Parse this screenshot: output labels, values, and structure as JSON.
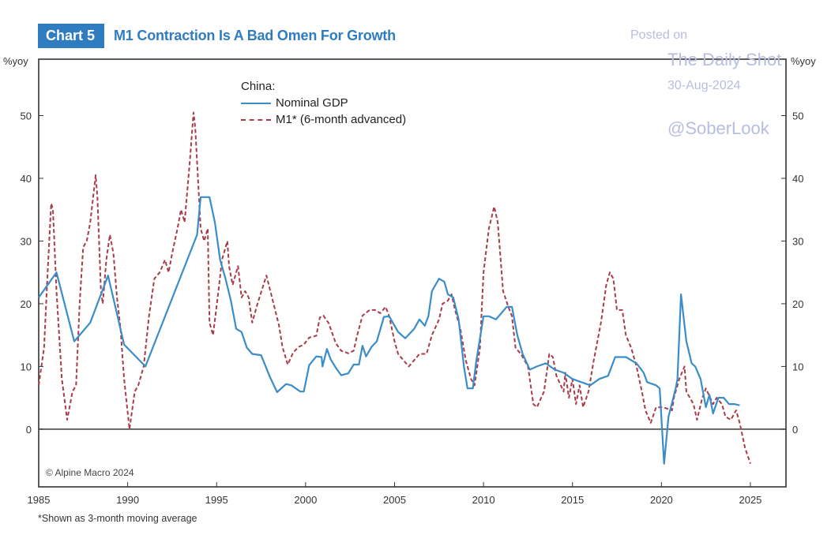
{
  "header": {
    "badge": "Chart 5",
    "title": "M1 Contraction Is A Bad Omen For Growth"
  },
  "watermark": {
    "line1": "Posted on",
    "line2": "The Daily Shot",
    "line3": "30-Aug-2024",
    "line4": "@SoberLook"
  },
  "colors": {
    "brand_blue": "#2f7cc1",
    "gdp_line": "#3a8dc8",
    "m1_line": "#a83c4a",
    "watermark": "#b7bde0"
  },
  "copyright": "© Alpine Macro 2024",
  "footnote": "*Shown as 3-month moving average",
  "chart_data": {
    "type": "line",
    "title": "M1 Contraction Is A Bad Omen For Growth",
    "xlabel": "",
    "ylabel": "%yoy",
    "ylabel_right": "%yoy",
    "xlim": [
      1985,
      2027
    ],
    "ylim": [
      -9.2,
      59
    ],
    "xticks": [
      1985,
      1990,
      1995,
      2000,
      2005,
      2010,
      2015,
      2020,
      2025
    ],
    "yticks": [
      0,
      10,
      20,
      30,
      40,
      50
    ],
    "grid": false,
    "zero_line": true,
    "legend": {
      "title": "China:",
      "position": "top-center",
      "entries": [
        "Nominal GDP",
        "M1* (6-month advanced)"
      ]
    },
    "series": [
      {
        "name": "Nominal GDP",
        "style": "solid",
        "x": [
          1985.0,
          1986.0,
          1987.0,
          1987.9,
          1988.9,
          1989.8,
          1991.0,
          1993.9,
          1994.1,
          1994.6,
          1994.9,
          1995.2,
          1995.5,
          1995.8,
          1996.1,
          1996.4,
          1996.7,
          1997.0,
          1997.5,
          1998.0,
          1998.4,
          1998.9,
          1999.2,
          1999.7,
          1999.9,
          2000.2,
          2000.6,
          2000.9,
          2000.95,
          2001.2,
          2001.4,
          2001.7,
          2002.0,
          2002.4,
          2002.7,
          2003.0,
          2003.2,
          2003.4,
          2003.7,
          2004.0,
          2004.4,
          2004.7,
          2005.0,
          2005.2,
          2005.6,
          2006.1,
          2006.4,
          2006.7,
          2006.9,
          2007.1,
          2007.5,
          2007.8,
          2008.0,
          2008.3,
          2008.6,
          2008.9,
          2009.1,
          2009.4,
          2009.6,
          2010.0,
          2010.3,
          2010.7,
          2011.0,
          2011.3,
          2011.6,
          2011.9,
          2012.2,
          2012.6,
          2013.0,
          2013.5,
          2014.0,
          2014.5,
          2015.0,
          2015.5,
          2016.0,
          2016.5,
          2017.0,
          2017.4,
          2018.0,
          2018.6,
          2019.0,
          2019.2,
          2019.7,
          2019.9,
          2020.15,
          2020.4,
          2020.8,
          2020.9,
          2021.1,
          2021.4,
          2021.7,
          2021.9,
          2022.2,
          2022.5,
          2022.7,
          2022.9,
          2023.2,
          2023.5,
          2023.8,
          2024.1,
          2024.4
        ],
        "values": [
          21,
          25,
          14,
          17,
          24.5,
          13.5,
          10,
          31,
          37,
          37,
          33,
          27,
          24,
          20.5,
          16,
          15.5,
          13,
          12,
          11.8,
          8.3,
          5.9,
          7.2,
          7,
          6,
          6,
          10.2,
          11.6,
          11.5,
          10,
          12.8,
          11.2,
          9.8,
          8.6,
          8.9,
          10.3,
          10.3,
          13.3,
          11.6,
          13.1,
          14,
          17.9,
          18,
          16.5,
          15.5,
          14.5,
          16,
          17.5,
          16.5,
          18,
          22,
          24,
          23.5,
          21.5,
          21,
          17.5,
          10,
          6.5,
          6.5,
          11,
          18,
          18,
          17.5,
          18.5,
          19.5,
          19.5,
          15,
          12,
          9.5,
          10,
          10.5,
          9.5,
          9,
          8,
          7.5,
          7,
          8,
          8.5,
          11.5,
          11.5,
          10.5,
          9,
          7.5,
          7,
          6.5,
          -5.5,
          2,
          6.5,
          8,
          21.5,
          14,
          10.5,
          10,
          8,
          3.5,
          5.5,
          2.5,
          5,
          5,
          4,
          4,
          3.8
        ]
      },
      {
        "name": "M1* (6-month advanced)",
        "style": "dashed",
        "x": [
          1985.0,
          1985.3,
          1985.5,
          1985.7,
          1985.8,
          1986.0,
          1986.3,
          1986.6,
          1986.9,
          1987.1,
          1987.3,
          1987.5,
          1987.7,
          1987.9,
          1988.2,
          1988.3,
          1988.5,
          1988.6,
          1988.8,
          1989.0,
          1989.2,
          1989.4,
          1989.6,
          1989.8,
          1990.1,
          1990.4,
          1990.6,
          1990.9,
          1991.2,
          1991.5,
          1991.8,
          1992.1,
          1992.3,
          1992.5,
          1992.8,
          1993.0,
          1993.2,
          1993.5,
          1993.7,
          1993.8,
          1994.1,
          1994.3,
          1994.5,
          1994.6,
          1994.8,
          1995.1,
          1995.3,
          1995.6,
          1995.7,
          1995.9,
          1996.2,
          1996.4,
          1996.6,
          1996.8,
          1997.0,
          1997.3,
          1997.8,
          1998.2,
          1998.5,
          1998.7,
          1999.0,
          1999.3,
          1999.6,
          1999.9,
          2000.2,
          2000.6,
          2000.8,
          2001.0,
          2001.3,
          2001.7,
          2002.0,
          2002.4,
          2002.7,
          2002.9,
          2003.2,
          2003.6,
          2003.9,
          2004.2,
          2004.5,
          2004.7,
          2005.0,
          2005.2,
          2005.5,
          2005.8,
          2006.1,
          2006.4,
          2006.8,
          2007.1,
          2007.5,
          2007.7,
          2008.0,
          2008.2,
          2008.4,
          2008.7,
          2009.0,
          2009.3,
          2009.5,
          2009.8,
          2010.0,
          2010.3,
          2010.6,
          2010.8,
          2011.1,
          2011.4,
          2011.6,
          2011.8,
          2012.1,
          2012.5,
          2012.8,
          2013.0,
          2013.4,
          2013.7,
          2013.9,
          2014.1,
          2014.5,
          2014.6,
          2014.8,
          2015.0,
          2015.2,
          2015.4,
          2015.6,
          2015.9,
          2016.2,
          2016.6,
          2016.9,
          2017.1,
          2017.3,
          2017.5,
          2017.8,
          2018.0,
          2018.3,
          2018.6,
          2018.9,
          2019.1,
          2019.4,
          2019.7,
          2020.1,
          2020.6,
          2020.7,
          2021.0,
          2021.3,
          2021.4,
          2021.8,
          2022.0,
          2022.3,
          2022.5,
          2022.9,
          2023.1,
          2023.4,
          2023.6,
          2023.9,
          2024.2,
          2024.4,
          2024.7,
          2025.0
        ],
        "values": [
          7,
          13,
          25,
          36,
          35,
          22,
          8,
          1.5,
          6,
          7,
          20,
          29,
          30,
          33,
          40.5,
          37,
          22,
          20,
          27,
          31,
          28,
          21,
          16,
          8,
          0,
          6,
          7,
          10,
          18,
          24,
          25,
          27,
          25,
          28,
          32,
          35,
          33,
          43,
          50.5,
          48,
          32,
          30,
          32,
          17,
          15,
          22,
          27,
          30,
          26,
          23,
          26,
          21,
          22,
          21,
          17,
          20,
          24.5,
          20,
          16.6,
          13.1,
          10.3,
          12.2,
          13.1,
          13.5,
          14.6,
          14.9,
          17.8,
          18.1,
          16.9,
          13.7,
          12.5,
          12.1,
          12.5,
          15,
          18.1,
          19,
          19,
          18.5,
          19.5,
          18,
          14,
          12,
          11,
          10,
          11,
          12,
          12,
          15,
          17.5,
          20,
          20.5,
          21.5,
          19,
          16,
          11,
          8,
          7,
          13,
          25,
          32,
          35.5,
          33,
          22,
          19.5,
          18,
          13,
          12,
          10,
          4,
          3.5,
          6,
          12,
          11.5,
          8.5,
          6,
          9,
          5,
          8,
          4,
          7,
          3.5,
          6,
          11,
          17,
          23,
          25,
          24,
          19,
          19,
          15,
          13,
          10,
          6,
          3,
          1,
          3.5,
          3.5,
          3,
          5,
          8,
          10,
          6,
          4,
          1.5,
          5,
          6.5,
          4,
          5,
          4,
          2,
          1.5,
          3,
          1,
          -3,
          -5.5
        ]
      }
    ]
  }
}
